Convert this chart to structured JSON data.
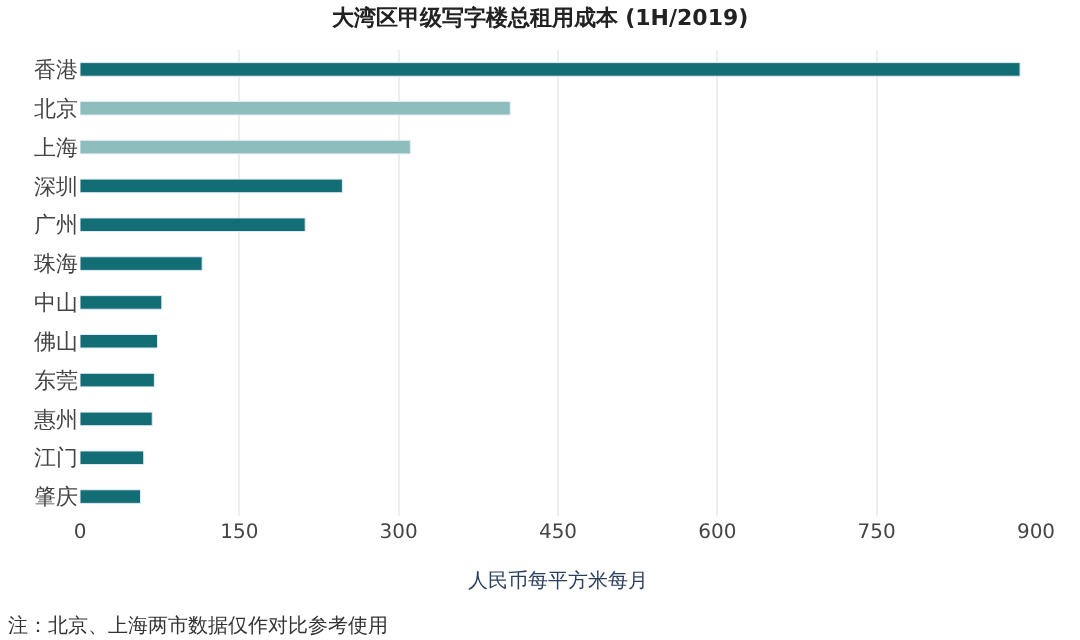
{
  "chart_data": {
    "type": "bar",
    "orientation": "horizontal",
    "title": "大湾区甲级写字楼总租用成本 (1H/2019)",
    "categories": [
      "香港",
      "北京",
      "上海",
      "深圳",
      "广州",
      "珠海",
      "中山",
      "佛山",
      "东莞",
      "惠州",
      "江门",
      "肇庆"
    ],
    "values": [
      885,
      405,
      311,
      247,
      212,
      115,
      77,
      73,
      70,
      68,
      60,
      57
    ],
    "colors": [
      "#136d74",
      "#8dbdbd",
      "#8dbdbd",
      "#136d74",
      "#136d74",
      "#136d74",
      "#136d74",
      "#136d74",
      "#136d74",
      "#136d74",
      "#136d74",
      "#136d74"
    ],
    "xlabel": "人民币每平方米每月",
    "xlim": [
      0,
      900
    ],
    "xticks": [
      0,
      150,
      300,
      450,
      600,
      750,
      900
    ],
    "grid": "x",
    "annotations": [
      "注：北京、上海两市数据仅作对比参考使用"
    ]
  }
}
